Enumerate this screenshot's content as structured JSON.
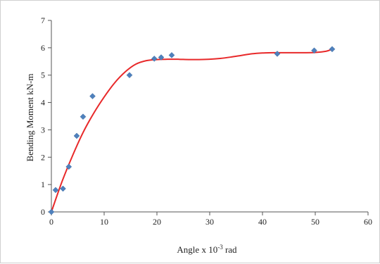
{
  "chart_data": {
    "type": "scatter",
    "xlabel": "Angle x 10-3 rad",
    "xlabel_parts": {
      "base": "Angle x 10",
      "superscript": "-3",
      "unit": " rad"
    },
    "ylabel": "Bending Moment kN-m",
    "xlim": [
      0,
      60
    ],
    "ylim": [
      0,
      7
    ],
    "x_ticks": [
      0,
      10,
      20,
      30,
      40,
      50,
      60
    ],
    "y_ticks": [
      0,
      1,
      2,
      3,
      4,
      5,
      6,
      7
    ],
    "grid": false,
    "legend": "none",
    "series": [
      {
        "kind": "points",
        "marker": "diamond",
        "color": "#4f81bd",
        "x": [
          0,
          0.8,
          2.2,
          3.3,
          4.8,
          6.0,
          7.8,
          14.8,
          19.5,
          20.8,
          22.8,
          42.8,
          49.8,
          53.2
        ],
        "y": [
          0,
          0.8,
          0.85,
          1.65,
          2.78,
          3.48,
          4.23,
          5.0,
          5.6,
          5.65,
          5.73,
          5.78,
          5.9,
          5.95
        ]
      },
      {
        "kind": "fit-curve",
        "color": "#e8292a",
        "x": [
          0,
          2,
          4,
          6,
          8,
          10,
          12,
          14,
          16,
          18,
          20,
          22,
          24,
          26,
          28,
          30,
          32,
          34,
          36,
          38,
          40,
          42,
          44,
          46,
          48,
          50,
          52,
          53.2
        ],
        "y": [
          0,
          1.1,
          2.05,
          2.9,
          3.6,
          4.2,
          4.72,
          5.12,
          5.4,
          5.53,
          5.57,
          5.58,
          5.58,
          5.57,
          5.57,
          5.58,
          5.61,
          5.66,
          5.72,
          5.78,
          5.81,
          5.82,
          5.82,
          5.82,
          5.82,
          5.83,
          5.87,
          5.95
        ]
      }
    ]
  }
}
